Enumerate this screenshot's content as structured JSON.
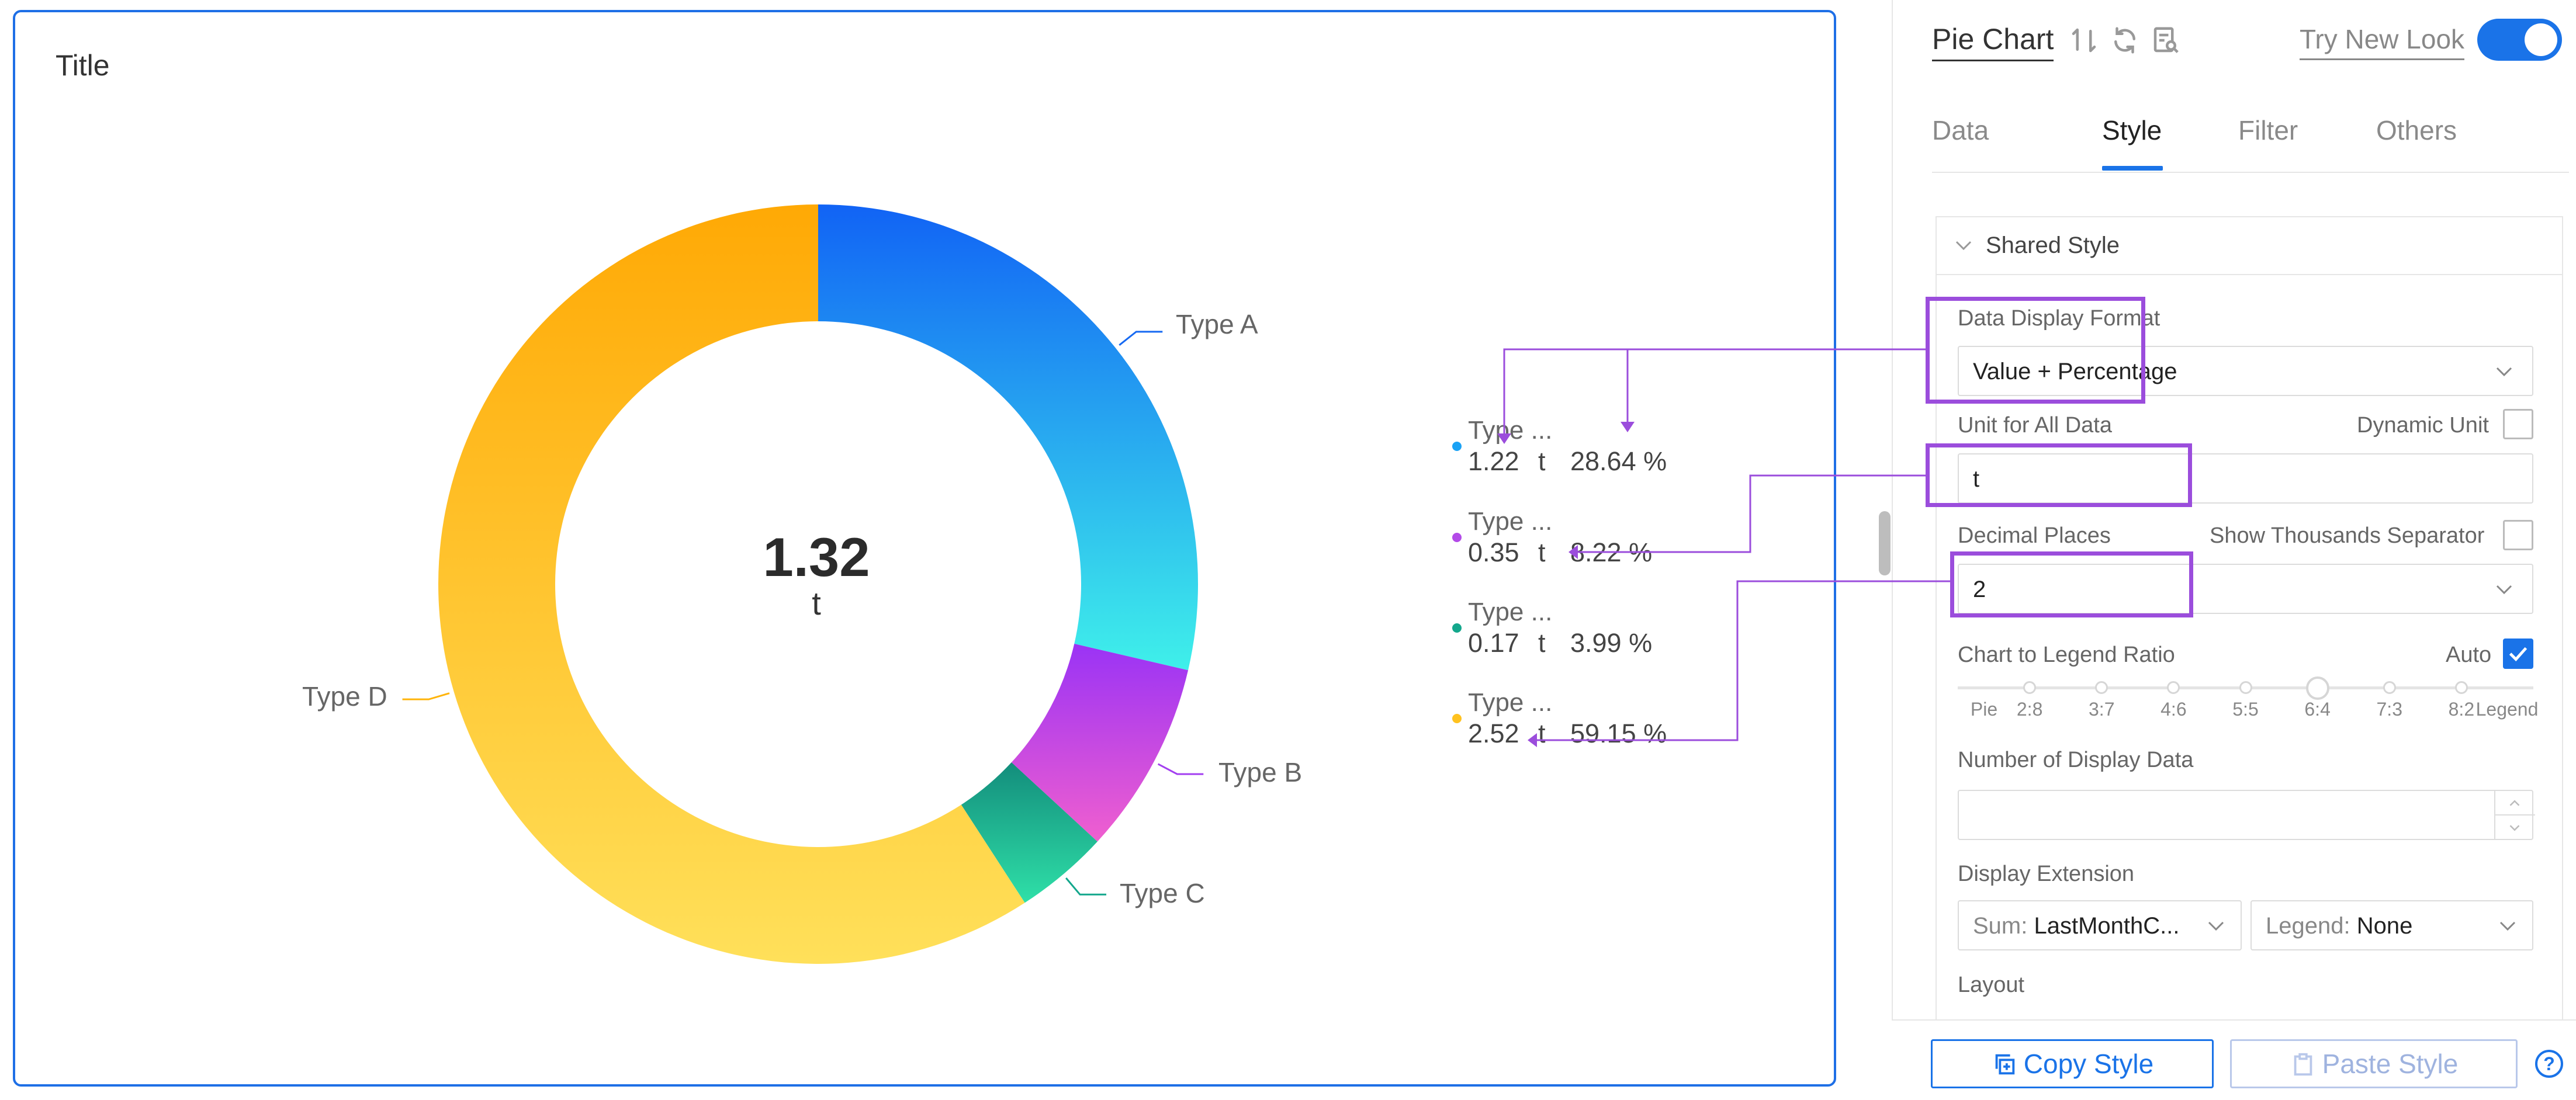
{
  "canvas": {
    "title": "Title"
  },
  "chart_data": {
    "type": "pie",
    "donut": true,
    "center_value": "1.32",
    "center_unit": "t",
    "categories": [
      "Type A",
      "Type B",
      "Type C",
      "Type D"
    ],
    "values": [
      1.22,
      0.35,
      0.17,
      2.52
    ],
    "percentages": [
      28.64,
      8.22,
      3.99,
      59.15
    ],
    "colors": [
      "#1669f2",
      "#a33ff0",
      "#13a78c",
      "#ffb40a"
    ],
    "legend_placement": "right",
    "legend": [
      {
        "name": "Type ...",
        "value": "1.22",
        "unit": "t",
        "percent": "28.64 %"
      },
      {
        "name": "Type ...",
        "value": "0.35",
        "unit": "t",
        "percent": "8.22 %"
      },
      {
        "name": "Type ...",
        "value": "0.17",
        "unit": "t",
        "percent": "3.99 %"
      },
      {
        "name": "Type ...",
        "value": "2.52",
        "unit": "t",
        "percent": "59.15 %"
      }
    ]
  },
  "panel": {
    "title": "Pie Chart",
    "icons": [
      "sort-icon",
      "refresh-icon",
      "inspect-icon"
    ],
    "try_new_look": "Try New Look",
    "toggle_on": true,
    "tabs": [
      "Data",
      "Style",
      "Filter",
      "Others"
    ],
    "active_tab": "Style",
    "section_title": "Shared Style",
    "data_display_format": {
      "label": "Data Display Format",
      "value": "Value + Percentage"
    },
    "unit": {
      "label": "Unit for All Data",
      "value": "t",
      "dynamic_label": "Dynamic Unit",
      "dynamic_checked": false
    },
    "decimal": {
      "label": "Decimal Places",
      "value": "2",
      "thousands_label": "Show Thousands Separator",
      "thousands_checked": false
    },
    "ratio": {
      "label": "Chart to Legend Ratio",
      "auto_label": "Auto",
      "auto_checked": true,
      "stops": [
        "Pie",
        "2:8",
        "3:7",
        "4:6",
        "5:5",
        "6:4",
        "7:3",
        "8:2",
        "Legend"
      ],
      "selected": "6:4"
    },
    "num_display": {
      "label": "Number of Display Data",
      "value": ""
    },
    "display_ext": {
      "label": "Display Extension",
      "sum_prefix": "Sum:",
      "sum_value": "LastMonthC...",
      "legend_prefix": "Legend:",
      "legend_value": "None"
    },
    "layout_label": "Layout",
    "copy_style": "Copy Style",
    "paste_style": "Paste Style",
    "help": "?"
  }
}
